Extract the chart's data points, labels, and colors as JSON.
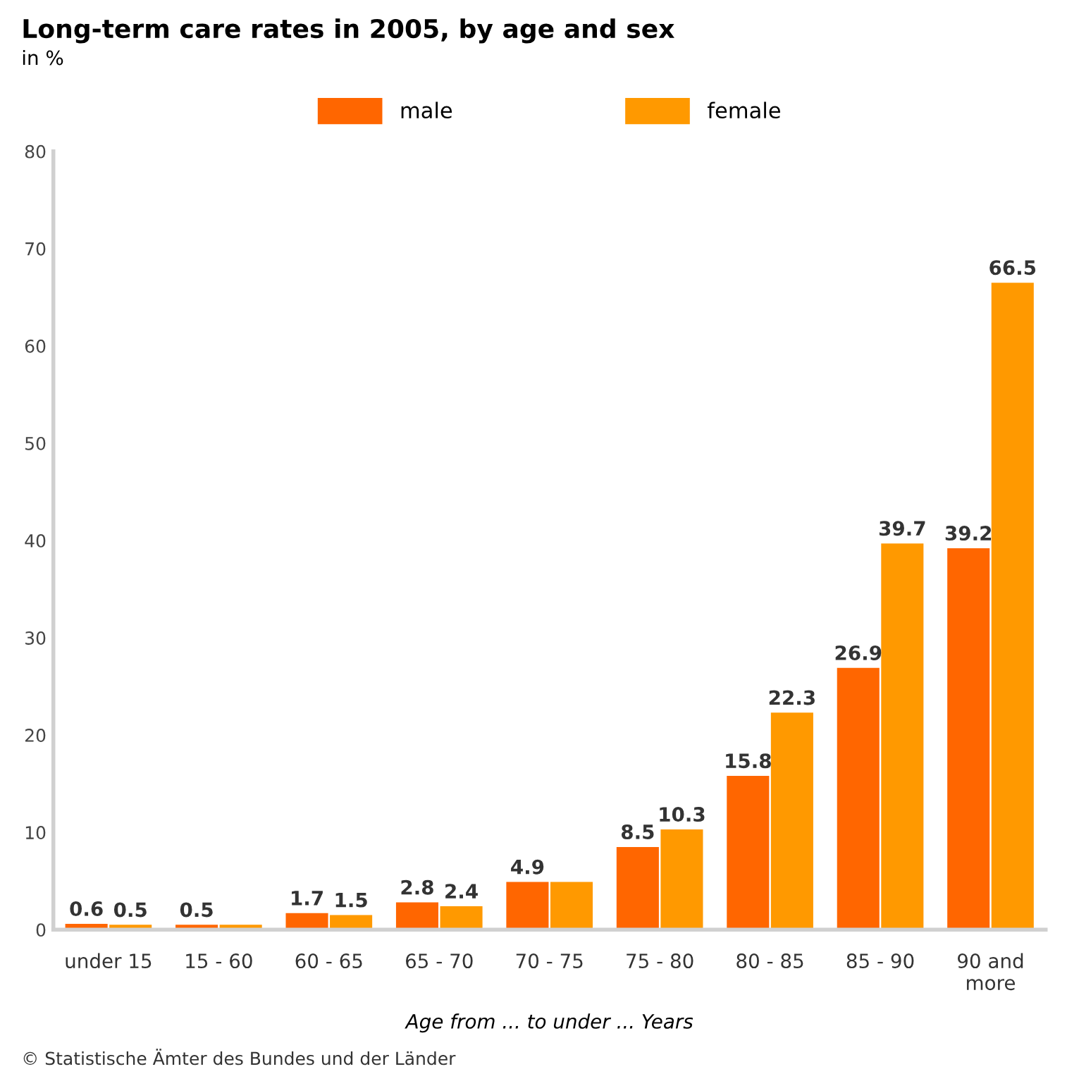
{
  "chart_data": {
    "type": "bar",
    "title": "Long-term care rates in 2005, by age and sex",
    "subtitle": "in %",
    "xlabel": "Age from ... to under ... Years",
    "categories": [
      "under 15",
      "15 - 60",
      "60 - 65",
      "65 - 70",
      "70 - 75",
      "75 - 80",
      "80 - 85",
      "85 - 90",
      "90 and\nmore"
    ],
    "series": [
      {
        "name": "male",
        "color": "#ff6600",
        "values": [
          0.6,
          0.5,
          1.7,
          2.8,
          4.9,
          8.5,
          15.8,
          26.9,
          39.2
        ],
        "value_labels": [
          "0.6",
          "0.5",
          "1.7",
          "2.8",
          "4.9",
          "8.5",
          "15.8",
          "26.9",
          "39.2"
        ]
      },
      {
        "name": "female",
        "color": "#ff9900",
        "values": [
          0.5,
          0.5,
          1.5,
          2.4,
          4.9,
          10.3,
          22.3,
          39.7,
          66.5
        ],
        "value_labels": [
          "0.5",
          null,
          "1.5",
          "2.4",
          null,
          "10.3",
          "22.3",
          "39.7",
          "66.5"
        ]
      }
    ],
    "ylim": [
      0,
      80
    ],
    "yticks": [
      0,
      10,
      20,
      30,
      40,
      50,
      60,
      70,
      80
    ],
    "grid": false,
    "legend": "top",
    "annotations": [
      "© Statistische Ämter des Bundes und der Länder"
    ]
  }
}
